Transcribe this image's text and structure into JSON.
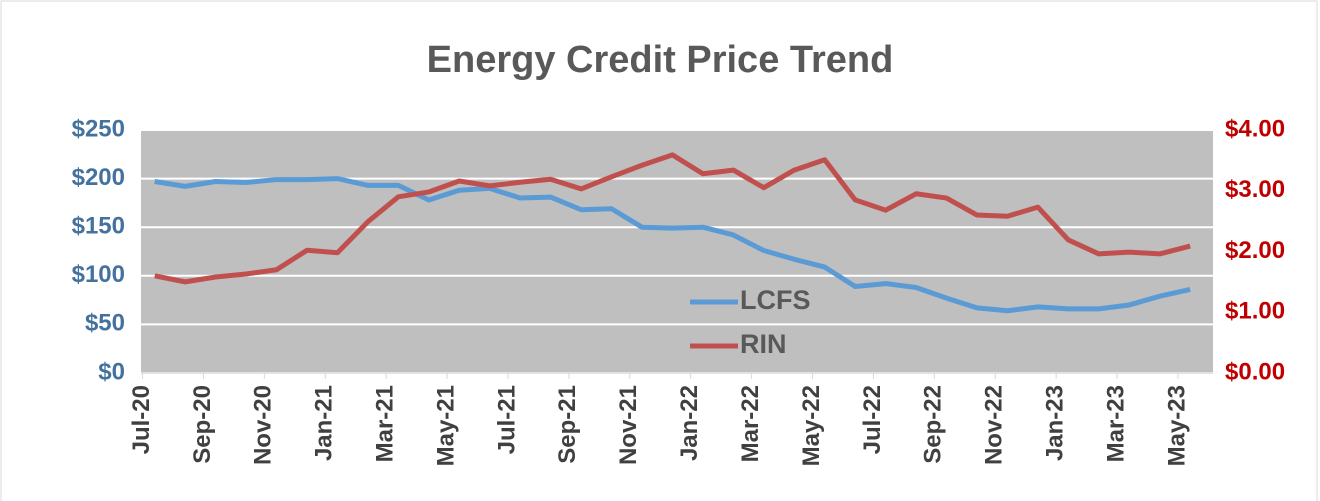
{
  "chart_data": {
    "type": "line",
    "title": "Energy Credit Price Trend",
    "categories": [
      "Jul-20",
      null,
      "Sep-20",
      null,
      "Nov-20",
      null,
      "Jan-21",
      null,
      "Mar-21",
      null,
      "May-21",
      null,
      "Jul-21",
      null,
      "Sep-21",
      null,
      "Nov-21",
      null,
      "Jan-22",
      null,
      "Mar-22",
      null,
      "May-22",
      null,
      "Jul-22",
      null,
      "Sep-22",
      null,
      "Nov-22",
      null,
      "Jan-23",
      null,
      "Mar-23",
      null,
      "May-23"
    ],
    "series": [
      {
        "name": "LCFS",
        "color": "#5b9bd5",
        "values": [
          197,
          192,
          197,
          196,
          199,
          199,
          200,
          193,
          193,
          178,
          188,
          190,
          180,
          181,
          168,
          169,
          150,
          149,
          150,
          142,
          126,
          117,
          109,
          89,
          92,
          88,
          77,
          67,
          64,
          68,
          66,
          66,
          70,
          79,
          86
        ]
      },
      {
        "name": "RIN",
        "color": "#c0504d",
        "axis": "y2",
        "values": [
          1.6,
          1.5,
          1.58,
          1.63,
          1.7,
          2.02,
          1.98,
          2.49,
          2.9,
          2.98,
          3.16,
          3.08,
          3.14,
          3.19,
          3.03,
          3.23,
          3.42,
          3.59,
          3.28,
          3.34,
          3.05,
          3.34,
          3.51,
          2.85,
          2.68,
          2.95,
          2.88,
          2.6,
          2.58,
          2.73,
          2.19,
          1.96,
          1.99,
          1.96,
          2.09
        ]
      }
    ],
    "ylim": [
      0,
      250
    ],
    "yticks": [
      {
        "value": 0,
        "label": "$0"
      },
      {
        "value": 50,
        "label": "$50"
      },
      {
        "value": 100,
        "label": "$100"
      },
      {
        "value": 150,
        "label": "$150"
      },
      {
        "value": 200,
        "label": "$200"
      },
      {
        "value": 250,
        "label": "$250"
      }
    ],
    "y2lim": [
      0,
      4
    ],
    "y2ticks": [
      {
        "value": 0,
        "label": "$0.00"
      },
      {
        "value": 1,
        "label": "$1.00"
      },
      {
        "value": 2,
        "label": "$2.00"
      },
      {
        "value": 3,
        "label": "$3.00"
      },
      {
        "value": 4,
        "label": "$4.00"
      }
    ],
    "grid": true,
    "legend": "center"
  }
}
